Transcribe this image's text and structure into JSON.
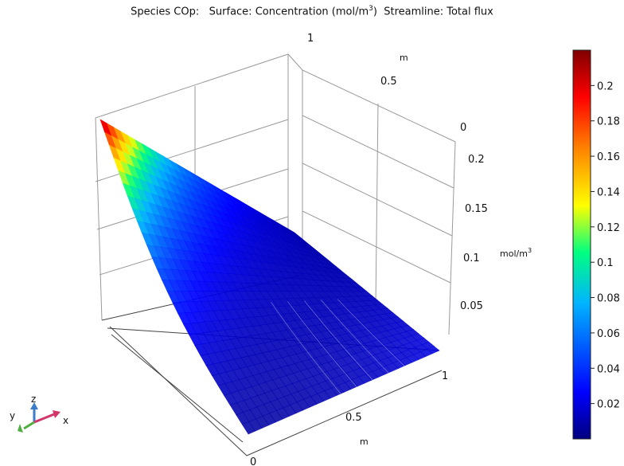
{
  "title": {
    "species": "Species COp:",
    "surface_prefix": "Surface: Concentration (mol/m",
    "surface_exp": "3",
    "surface_suffix": ")",
    "streamline": "Streamline: Total flux"
  },
  "chart_data": {
    "type": "surface",
    "title": "Species COp: Surface: Concentration (mol/m3) Streamline: Total flux",
    "x_axis": {
      "label": "m",
      "ticks": [
        "0",
        "0.5",
        "1"
      ],
      "range": [
        0,
        1
      ]
    },
    "y_axis": {
      "label": "m",
      "ticks": [
        "0",
        "0.5",
        "1"
      ],
      "range": [
        0,
        1
      ]
    },
    "z_axis": {
      "label": "mol/m3",
      "label_base": "mol/m",
      "label_exp": "3",
      "ticks": [
        "0.05",
        "0.1",
        "0.15",
        "0.2"
      ],
      "range": [
        0,
        0.2
      ]
    },
    "colorbar": {
      "ticks": [
        "0.2",
        "0.18",
        "0.16",
        "0.14",
        "0.12",
        "0.1",
        "0.08",
        "0.06",
        "0.04",
        "0.02"
      ],
      "range": [
        0,
        0.22
      ],
      "colors": [
        "#00007f",
        "#0000ff",
        "#00b4ff",
        "#00ff80",
        "#ffff00",
        "#ff8000",
        "#ff0000",
        "#800000"
      ]
    },
    "surface_values": {
      "corner_high": 0.22,
      "corner_x1_y0": 0.0,
      "corner_x0_y1": 0.0,
      "corner_far": 0.09
    },
    "grid": true,
    "legend": "right"
  },
  "triad": {
    "z": "z",
    "y": "y",
    "x": "x"
  }
}
